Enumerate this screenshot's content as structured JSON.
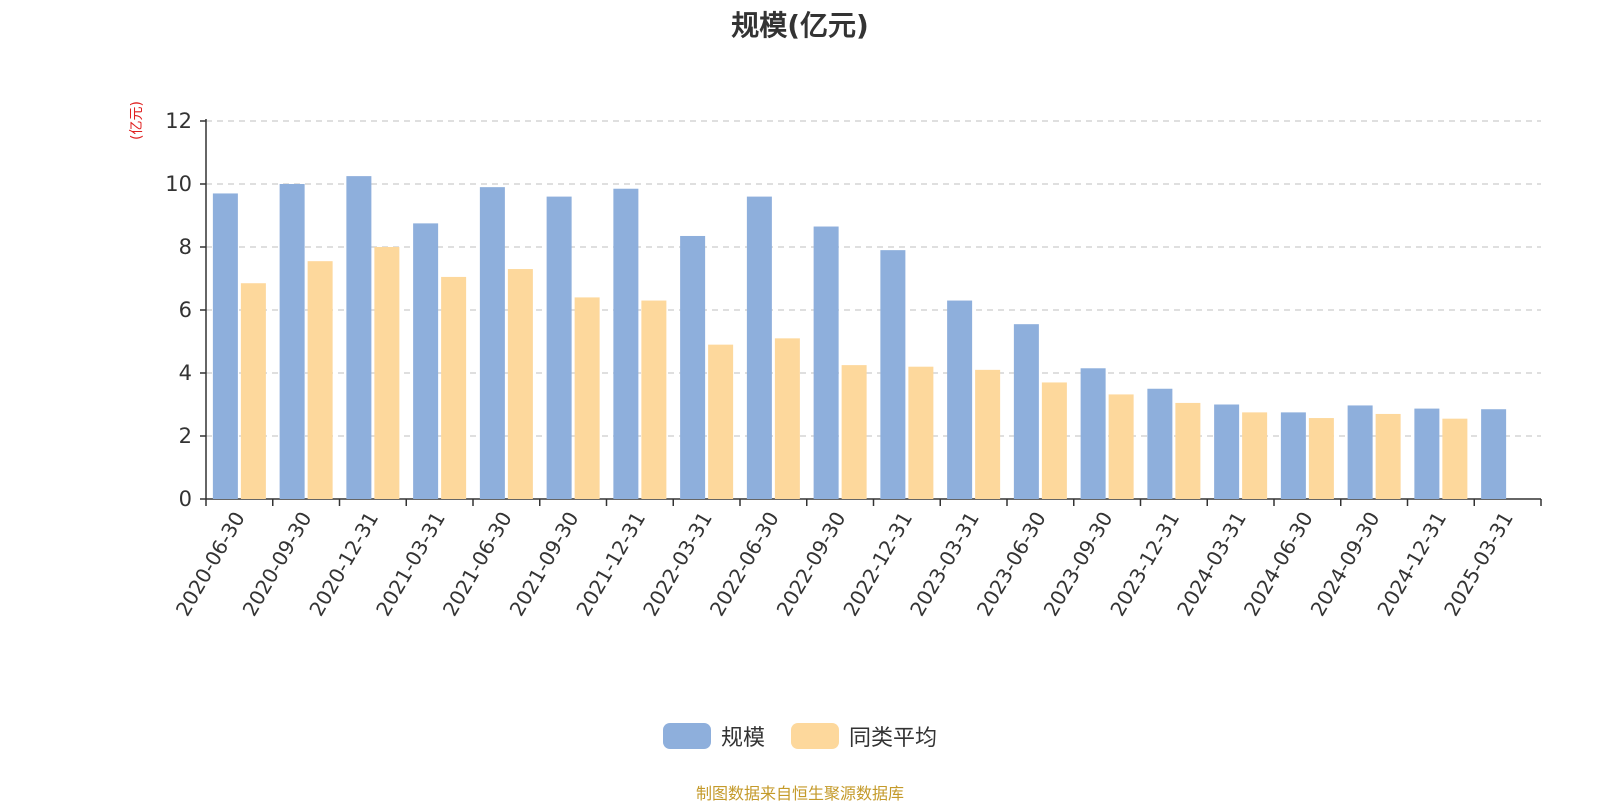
{
  "chart_data": {
    "type": "bar",
    "title": "规模(亿元)",
    "ylabel": "(亿元)",
    "ylim": [
      0,
      12
    ],
    "yticks": [
      0,
      2,
      4,
      6,
      8,
      10,
      12
    ],
    "grid": true,
    "legend_position": "bottom-center",
    "categories": [
      "2020-06-30",
      "2020-09-30",
      "2020-12-31",
      "2021-03-31",
      "2021-06-30",
      "2021-09-30",
      "2021-12-31",
      "2022-03-31",
      "2022-06-30",
      "2022-09-30",
      "2022-12-31",
      "2023-03-31",
      "2023-06-30",
      "2023-09-30",
      "2023-12-31",
      "2024-03-31",
      "2024-06-30",
      "2024-09-30",
      "2024-12-31",
      "2025-03-31"
    ],
    "series": [
      {
        "name": "规模",
        "color": "#8eafdc",
        "values": [
          9.7,
          10.0,
          10.25,
          8.75,
          9.9,
          9.6,
          9.85,
          8.35,
          9.6,
          8.65,
          7.9,
          6.3,
          5.55,
          4.15,
          3.5,
          3.0,
          2.75,
          2.97,
          2.87,
          2.85
        ]
      },
      {
        "name": "同类平均",
        "color": "#fdd89c",
        "values": [
          6.85,
          7.55,
          8.0,
          7.05,
          7.3,
          6.4,
          6.3,
          4.9,
          5.1,
          4.25,
          4.2,
          4.1,
          3.7,
          3.32,
          3.05,
          2.75,
          2.57,
          2.7,
          2.55,
          null
        ]
      }
    ]
  },
  "source_note": "制图数据来自恒生聚源数据库"
}
